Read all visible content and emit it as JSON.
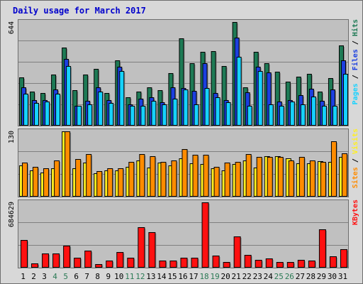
{
  "chart_data": {
    "type": "bar",
    "title": "Daily usage for March 2017",
    "categories": [
      "1",
      "2",
      "3",
      "4",
      "5",
      "6",
      "7",
      "8",
      "9",
      "10",
      "11",
      "12",
      "13",
      "14",
      "15",
      "16",
      "17",
      "18",
      "19",
      "20",
      "21",
      "22",
      "23",
      "24",
      "25",
      "26",
      "27",
      "28",
      "29",
      "30",
      "31"
    ],
    "weekend_days": [
      "4",
      "5",
      "11",
      "12",
      "18",
      "19",
      "25",
      "26"
    ],
    "colors": {
      "hits": "#1e7a55",
      "files": "#1b3fe0",
      "pages": "#16d2ff",
      "visits": "#ffef20",
      "sites": "#ff8c00",
      "kbytes": "#ff1010",
      "title": "#0000cc",
      "weekend_label": "#2b7a55",
      "plot_bg": "#c0c0c0",
      "frame_bg": "#d8d8d8"
    },
    "panels": [
      {
        "id": "top",
        "ymax_label": "644",
        "ymax": 644,
        "legend": [
          {
            "text": "Pages",
            "color": "#16d2ff"
          },
          {
            "text": " / ",
            "color": "#000000"
          },
          {
            "text": "Files",
            "color": "#1b3fe0"
          },
          {
            "text": " / ",
            "color": "#000000"
          },
          {
            "text": "Hits",
            "color": "#1e7a55"
          }
        ],
        "series": [
          {
            "name": "Hits",
            "color": "#1e7a55",
            "values": [
              296,
              208,
              200,
              314,
              486,
              218,
              314,
              350,
              200,
              405,
              172,
              208,
              236,
              218,
              323,
              541,
              387,
              459,
              463,
              368,
              644,
              236,
              459,
              387,
              335,
              272,
              300,
              318,
              210,
              291,
              498
            ]
          },
          {
            "name": "Files",
            "color": "#1b3fe0",
            "values": [
              236,
              154,
              154,
              222,
              414,
              118,
              150,
              236,
              154,
              364,
              127,
              163,
              172,
              141,
              236,
              232,
              212,
              386,
              200,
              154,
              548,
              204,
              363,
              327,
              145,
              154,
              187,
              227,
              150,
              223,
              402
            ]
          },
          {
            "name": "Pages",
            "color": "#16d2ff",
            "values": [
              195,
              136,
              145,
              195,
              368,
              118,
              127,
              209,
              136,
              336,
              118,
              122,
              150,
              127,
              163,
              222,
              127,
              232,
              173,
              141,
              427,
              122,
              336,
              127,
              122,
              145,
              127,
              177,
              122,
              118,
              318
            ]
          }
        ]
      },
      {
        "id": "middle",
        "ymax_label": "130",
        "ymax": 130,
        "legend": [
          {
            "text": "Sites",
            "color": "#ff8c00"
          },
          {
            "text": " / ",
            "color": "#000000"
          },
          {
            "text": "Visits",
            "color": "#ffef20"
          }
        ],
        "series": [
          {
            "name": "Visits",
            "color": "#ffef20",
            "values": [
              62,
              52,
              47,
              55,
              130,
              56,
              67,
              45,
              52,
              52,
              59,
              71,
              57,
              67,
              62,
              76,
              66,
              64,
              55,
              52,
              64,
              71,
              57,
              80,
              80,
              75,
              66,
              65,
              70,
              69,
              78
            ]
          },
          {
            "name": "Sites",
            "color": "#ff8c00",
            "values": [
              67,
              59,
              55,
              71,
              130,
              74,
              84,
              50,
              55,
              55,
              69,
              84,
              80,
              69,
              71,
              94,
              83,
              83,
              59,
              67,
              69,
              84,
              78,
              78,
              78,
              71,
              78,
              71,
              68,
              110,
              85
            ]
          }
        ]
      },
      {
        "id": "bottom",
        "ymax_label": "684629",
        "ymax": 684629,
        "legend": [
          {
            "text": "KBytes",
            "color": "#ff1010"
          }
        ],
        "series": [
          {
            "name": "KBytes",
            "color": "#ff1010",
            "values": [
              285000,
              35000,
              145000,
              140000,
              225000,
              95000,
              175000,
              30000,
              70000,
              155000,
              100000,
              425000,
              365000,
              65000,
              65000,
              100000,
              100000,
              684629,
              120000,
              50000,
              320000,
              130000,
              75000,
              90000,
              50000,
              55000,
              75000,
              70000,
              400000,
              115000,
              185000
            ]
          }
        ]
      }
    ]
  }
}
